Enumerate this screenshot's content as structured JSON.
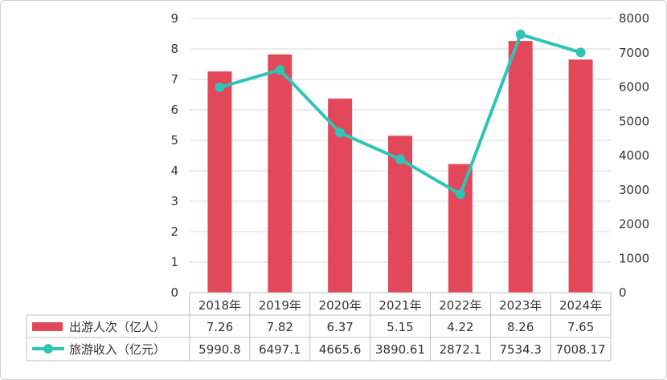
{
  "chart_data": {
    "type": "bar",
    "categories": [
      "2018年",
      "2019年",
      "2020年",
      "2021年",
      "2022年",
      "2023年",
      "2024年"
    ],
    "series": [
      {
        "name": "出游人次（亿人）",
        "type": "bar",
        "axis": "left",
        "color": "#e2485a",
        "values": [
          7.26,
          7.82,
          6.37,
          5.15,
          4.22,
          8.26,
          7.65
        ],
        "labels": [
          "7.26",
          "7.82",
          "6.37",
          "5.15",
          "4.22",
          "8.26",
          "7.65"
        ]
      },
      {
        "name": "旅游收入（亿元）",
        "type": "line",
        "axis": "right",
        "color": "#2ec4b6",
        "values": [
          5990.8,
          6497.1,
          4665.6,
          3890.61,
          2872.1,
          7534.3,
          7008.17
        ],
        "labels": [
          "5990.8",
          "6497.1",
          "4665.6",
          "3890.61",
          "2872.1",
          "7534.3",
          "7008.17"
        ]
      }
    ],
    "y_left": {
      "ylim": [
        0,
        9
      ],
      "ticks": [
        "0",
        "1",
        "2",
        "3",
        "4",
        "5",
        "6",
        "7",
        "8",
        "9"
      ]
    },
    "y_right": {
      "ylim": [
        0,
        8000
      ],
      "ticks": [
        "0",
        "1000",
        "2000",
        "3000",
        "4000",
        "5000",
        "6000",
        "7000",
        "8000"
      ]
    },
    "grid": true,
    "data_table": true
  }
}
